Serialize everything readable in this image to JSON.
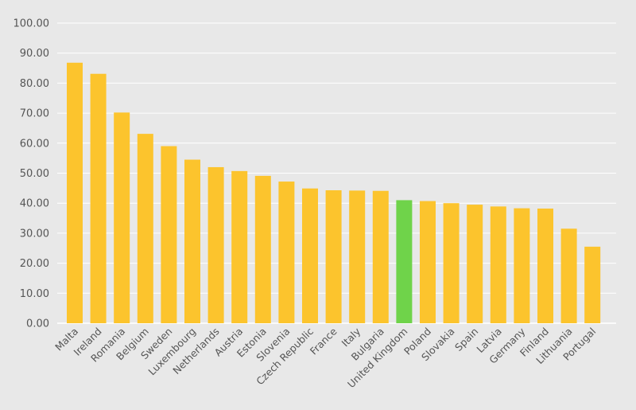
{
  "chart_data": {
    "type": "bar",
    "title": "",
    "xlabel": "",
    "ylabel": "",
    "ylim": [
      0,
      100
    ],
    "yticks": [
      "0.00",
      "10.00",
      "20.00",
      "30.00",
      "40.00",
      "50.00",
      "60.00",
      "70.00",
      "80.00",
      "90.00",
      "100.00"
    ],
    "grid": true,
    "categories": [
      "Malta",
      "Ireland",
      "Romania",
      "Belgium",
      "Sweden",
      "Luxembourg",
      "Netherlands",
      "Austria",
      "Estonia",
      "Slovenia",
      "Czech Republic",
      "France",
      "Italy",
      "Bulgaria",
      "United Kingdom",
      "Poland",
      "Slovakia",
      "Spain",
      "Latvia",
      "Germany",
      "Finland",
      "Lithuania",
      "Portugal"
    ],
    "values": [
      86.8,
      83.1,
      70.2,
      63.1,
      59.0,
      54.5,
      52.0,
      50.7,
      49.1,
      47.2,
      44.9,
      44.3,
      44.2,
      44.1,
      41.0,
      40.7,
      40.0,
      39.5,
      38.9,
      38.3,
      38.2,
      31.5,
      25.5
    ],
    "highlight": "United Kingdom",
    "colors": {
      "bar": "#fcc42d",
      "highlight": "#6fd34a",
      "grid": "#ffffff",
      "text": "#555555",
      "background": "#e8e8e8"
    }
  }
}
